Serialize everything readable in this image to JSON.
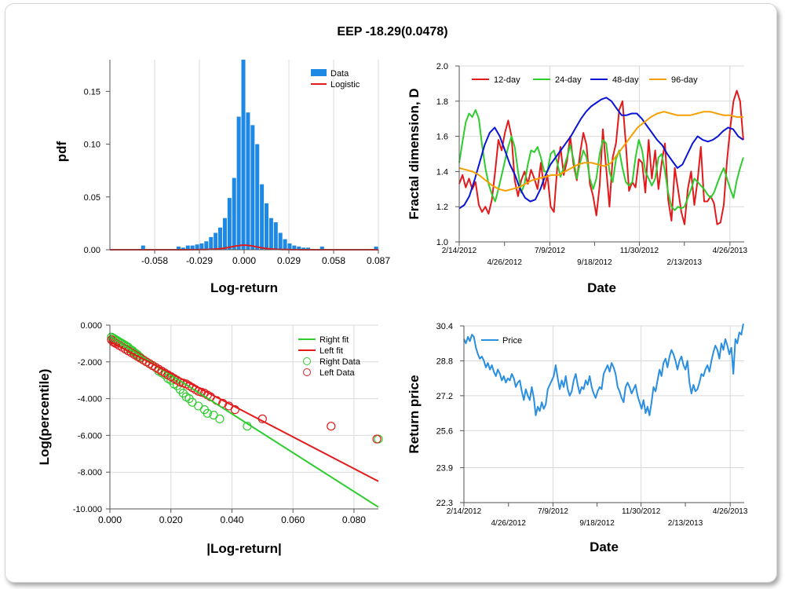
{
  "title": "EEP -18.29(0.0478)",
  "colors": {
    "bars": "#1e88e5",
    "logistic": "#e31a1c",
    "red": "#e31a1c",
    "green": "#2ecc2e",
    "blue": "#0a14d6",
    "orange": "#f5a000",
    "price": "#2a8fe0",
    "grid": "#d9d9d9"
  },
  "chart_data": [
    {
      "id": "pdf",
      "type": "bar",
      "xlabel": "Log-return",
      "ylabel": "pdf",
      "xlim": [
        -0.087,
        0.087
      ],
      "ylim": [
        0,
        0.18
      ],
      "x_tick_values": [
        -0.058,
        -0.029,
        0.0,
        0.029,
        0.058,
        0.087
      ],
      "x_tick_labels": [
        "-0.058",
        "-0.029",
        "0.000",
        "0.029",
        "0.058",
        "0.087"
      ],
      "y_tick_values": [
        0,
        0.05,
        0.1,
        0.15
      ],
      "y_tick_labels": [
        "0.00",
        "0.05",
        "0.10",
        "0.15"
      ],
      "legend": [
        "Data",
        "Logistic"
      ],
      "bars": [
        {
          "x": -0.0655,
          "h": 0.004
        },
        {
          "x": -0.0425,
          "h": 0.003
        },
        {
          "x": -0.0395,
          "h": 0.002
        },
        {
          "x": -0.0365,
          "h": 0.004
        },
        {
          "x": -0.0335,
          "h": 0.004
        },
        {
          "x": -0.0305,
          "h": 0.005
        },
        {
          "x": -0.0275,
          "h": 0.006
        },
        {
          "x": -0.0245,
          "h": 0.008
        },
        {
          "x": -0.0215,
          "h": 0.012
        },
        {
          "x": -0.0185,
          "h": 0.016
        },
        {
          "x": -0.0155,
          "h": 0.021
        },
        {
          "x": -0.0125,
          "h": 0.03
        },
        {
          "x": -0.0095,
          "h": 0.049
        },
        {
          "x": -0.0065,
          "h": 0.068
        },
        {
          "x": -0.0035,
          "h": 0.126
        },
        {
          "x": -0.0005,
          "h": 0.18
        },
        {
          "x": 0.0025,
          "h": 0.13
        },
        {
          "x": 0.0055,
          "h": 0.118
        },
        {
          "x": 0.0085,
          "h": 0.1
        },
        {
          "x": 0.0115,
          "h": 0.062
        },
        {
          "x": 0.0145,
          "h": 0.044
        },
        {
          "x": 0.0175,
          "h": 0.03
        },
        {
          "x": 0.0205,
          "h": 0.026
        },
        {
          "x": 0.0235,
          "h": 0.016
        },
        {
          "x": 0.0265,
          "h": 0.01
        },
        {
          "x": 0.0295,
          "h": 0.006
        },
        {
          "x": 0.0325,
          "h": 0.004
        },
        {
          "x": 0.0355,
          "h": 0.003
        },
        {
          "x": 0.0385,
          "h": 0.002
        },
        {
          "x": 0.0415,
          "h": 0.002
        },
        {
          "x": 0.0505,
          "h": 0.003
        },
        {
          "x": 0.0855,
          "h": 0.003
        }
      ],
      "logistic": {
        "mu": 0.0,
        "s": 0.0058
      }
    },
    {
      "id": "fractal",
      "type": "line",
      "xlabel": "Date",
      "ylabel": "Fractal dimension, D",
      "xlim": [
        0,
        1.0
      ],
      "ylim": [
        1.0,
        2.0
      ],
      "y_tick_values": [
        1.0,
        1.2,
        1.4,
        1.6,
        1.8,
        2.0
      ],
      "y_tick_labels": [
        "1.0",
        "1.2",
        "1.4",
        "1.6",
        "1.8",
        "2.0"
      ],
      "date_ticks_top": [
        "2/14/2012",
        "7/9/2012",
        "11/30/2012",
        "4/26/2013"
      ],
      "date_ticks_bottom": [
        "4/26/2012",
        "9/18/2012",
        "2/13/2013"
      ],
      "date_tick_positions_top": [
        0.0,
        0.318,
        0.632,
        0.95
      ],
      "date_tick_positions_bottom": [
        0.159,
        0.475,
        0.79
      ],
      "legend": [
        "12-day",
        "24-day",
        "48-day",
        "96-day"
      ],
      "series": [
        {
          "name": "12-day",
          "color_key": "red",
          "values": [
            1.33,
            1.38,
            1.31,
            1.36,
            1.3,
            1.34,
            1.21,
            1.17,
            1.2,
            1.16,
            1.24,
            1.4,
            1.58,
            1.52,
            1.62,
            1.69,
            1.6,
            1.35,
            1.26,
            1.35,
            1.4,
            1.33,
            1.41,
            1.36,
            1.3,
            1.45,
            1.3,
            1.38,
            1.2,
            1.17,
            1.42,
            1.54,
            1.38,
            1.46,
            1.6,
            1.44,
            1.35,
            1.5,
            1.62,
            1.55,
            1.33,
            1.26,
            1.15,
            1.32,
            1.64,
            1.42,
            1.2,
            1.48,
            1.56,
            1.75,
            1.8,
            1.56,
            1.29,
            1.34,
            1.31,
            1.47,
            1.45,
            1.28,
            1.58,
            1.36,
            1.52,
            1.3,
            1.45,
            1.56,
            1.24,
            1.12,
            1.42,
            1.3,
            1.17,
            1.1,
            1.3,
            1.4,
            1.21,
            1.35,
            1.54,
            1.23,
            1.23,
            1.26,
            1.22,
            1.1,
            1.11,
            1.21,
            1.46,
            1.65,
            1.8,
            1.86,
            1.8,
            1.58
          ]
        },
        {
          "name": "24-day",
          "color_key": "green",
          "values": [
            1.45,
            1.57,
            1.68,
            1.73,
            1.71,
            1.75,
            1.7,
            1.55,
            1.42,
            1.33,
            1.27,
            1.23,
            1.3,
            1.38,
            1.46,
            1.54,
            1.6,
            1.54,
            1.4,
            1.28,
            1.33,
            1.44,
            1.52,
            1.51,
            1.54,
            1.48,
            1.4,
            1.4,
            1.5,
            1.52,
            1.45,
            1.37,
            1.42,
            1.48,
            1.55,
            1.47,
            1.36,
            1.45,
            1.52,
            1.48,
            1.36,
            1.3,
            1.36,
            1.5,
            1.58,
            1.56,
            1.4,
            1.34,
            1.47,
            1.52,
            1.42,
            1.34,
            1.32,
            1.34,
            1.48,
            1.58,
            1.52,
            1.4,
            1.36,
            1.32,
            1.36,
            1.48,
            1.5,
            1.4,
            1.28,
            1.2,
            1.18,
            1.2,
            1.19,
            1.2,
            1.25,
            1.3,
            1.36,
            1.34,
            1.32,
            1.3,
            1.27,
            1.25,
            1.28,
            1.33,
            1.38,
            1.42,
            1.36,
            1.3,
            1.25,
            1.35,
            1.42,
            1.48
          ]
        },
        {
          "name": "48-day",
          "color_key": "blue",
          "values": [
            1.19,
            1.21,
            1.26,
            1.35,
            1.45,
            1.55,
            1.62,
            1.65,
            1.6,
            1.52,
            1.44,
            1.38,
            1.3,
            1.25,
            1.23,
            1.24,
            1.3,
            1.38,
            1.44,
            1.48,
            1.52,
            1.56,
            1.6,
            1.65,
            1.7,
            1.74,
            1.77,
            1.79,
            1.81,
            1.82,
            1.8,
            1.76,
            1.72,
            1.72,
            1.73,
            1.73,
            1.7,
            1.66,
            1.62,
            1.58,
            1.55,
            1.5,
            1.46,
            1.42,
            1.44,
            1.5,
            1.56,
            1.6,
            1.58,
            1.57,
            1.58,
            1.6,
            1.63,
            1.65,
            1.64,
            1.6,
            1.58
          ]
        },
        {
          "name": "96-day",
          "color_key": "orange",
          "values": [
            1.42,
            1.41,
            1.4,
            1.38,
            1.35,
            1.32,
            1.3,
            1.29,
            1.3,
            1.31,
            1.33,
            1.35,
            1.36,
            1.37,
            1.38,
            1.38,
            1.4,
            1.42,
            1.44,
            1.45,
            1.45,
            1.44,
            1.43,
            1.45,
            1.5,
            1.55,
            1.6,
            1.65,
            1.68,
            1.71,
            1.73,
            1.74,
            1.73,
            1.72,
            1.72,
            1.72,
            1.73,
            1.74,
            1.74,
            1.73,
            1.72,
            1.72,
            1.71,
            1.71
          ]
        }
      ]
    },
    {
      "id": "tail",
      "type": "scatter",
      "xlabel": "|Log-return|",
      "ylabel": "Log(percentile)",
      "xlim": [
        0,
        0.088
      ],
      "ylim": [
        -10.0,
        0.0
      ],
      "x_tick_values": [
        0.0,
        0.02,
        0.04,
        0.06,
        0.08
      ],
      "x_tick_labels": [
        "0.000",
        "0.020",
        "0.040",
        "0.060",
        "0.080"
      ],
      "y_tick_values": [
        0,
        -2,
        -4,
        -6,
        -8,
        -10
      ],
      "y_tick_labels": [
        "0.000",
        "-2.000",
        "-4.000",
        "-6.000",
        "-8.000",
        "-10.000"
      ],
      "legend": [
        "Right fit",
        "Left fit",
        "Right Data",
        "Left Data"
      ],
      "right_fit": {
        "x": [
          0.0,
          0.088
        ],
        "y": [
          -0.6,
          -9.9
        ]
      },
      "left_fit": {
        "x": [
          0.0,
          0.088
        ],
        "y": [
          -0.9,
          -8.5
        ]
      },
      "right_data": {
        "x": [
          0.0005,
          0.001,
          0.0015,
          0.002,
          0.0025,
          0.003,
          0.0035,
          0.004,
          0.0045,
          0.005,
          0.0055,
          0.006,
          0.0065,
          0.007,
          0.0075,
          0.008,
          0.0085,
          0.009,
          0.0095,
          0.01,
          0.011,
          0.012,
          0.013,
          0.014,
          0.015,
          0.016,
          0.017,
          0.018,
          0.019,
          0.02,
          0.021,
          0.022,
          0.023,
          0.024,
          0.025,
          0.026,
          0.027,
          0.029,
          0.031,
          0.032,
          0.034,
          0.036,
          0.045,
          0.088
        ],
        "y": [
          -0.65,
          -0.7,
          -0.75,
          -0.8,
          -0.85,
          -0.9,
          -0.95,
          -1.0,
          -1.05,
          -1.1,
          -1.15,
          -1.2,
          -1.3,
          -1.35,
          -1.4,
          -1.5,
          -1.55,
          -1.6,
          -1.7,
          -1.75,
          -1.9,
          -2.0,
          -2.1,
          -2.2,
          -2.3,
          -2.5,
          -2.6,
          -2.7,
          -2.9,
          -3.0,
          -3.2,
          -3.3,
          -3.5,
          -3.7,
          -3.9,
          -4.0,
          -4.2,
          -4.4,
          -4.6,
          -4.8,
          -4.9,
          -5.1,
          -5.5,
          -6.2
        ]
      },
      "left_data": {
        "x": [
          0.0005,
          0.001,
          0.0015,
          0.002,
          0.003,
          0.004,
          0.005,
          0.006,
          0.007,
          0.008,
          0.009,
          0.01,
          0.011,
          0.012,
          0.013,
          0.014,
          0.015,
          0.016,
          0.017,
          0.018,
          0.019,
          0.02,
          0.021,
          0.022,
          0.023,
          0.024,
          0.025,
          0.026,
          0.027,
          0.028,
          0.029,
          0.03,
          0.031,
          0.032,
          0.033,
          0.035,
          0.037,
          0.039,
          0.041,
          0.05,
          0.0725,
          0.0875
        ],
        "y": [
          -0.8,
          -0.9,
          -0.95,
          -1.0,
          -1.1,
          -1.2,
          -1.3,
          -1.4,
          -1.5,
          -1.6,
          -1.7,
          -1.8,
          -1.9,
          -2.0,
          -2.1,
          -2.2,
          -2.3,
          -2.4,
          -2.5,
          -2.6,
          -2.7,
          -2.8,
          -2.9,
          -3.0,
          -3.1,
          -3.15,
          -3.2,
          -3.3,
          -3.4,
          -3.5,
          -3.6,
          -3.65,
          -3.7,
          -3.8,
          -3.9,
          -4.1,
          -4.25,
          -4.4,
          -4.6,
          -5.1,
          -5.5,
          -6.2
        ]
      }
    },
    {
      "id": "price",
      "type": "line",
      "xlabel": "Date",
      "ylabel": "Return price",
      "xlim": [
        0,
        1.0
      ],
      "ylim": [
        22.3,
        30.4
      ],
      "y_tick_values": [
        22.3,
        23.9,
        25.6,
        27.2,
        28.8,
        30.4
      ],
      "y_tick_labels": [
        "22.3",
        "23.9",
        "25.6",
        "27.2",
        "28.8",
        "30.4"
      ],
      "date_ticks_top": [
        "2/14/2012",
        "7/9/2012",
        "11/30/2012",
        "4/26/2013"
      ],
      "date_ticks_bottom": [
        "4/26/2012",
        "9/18/2012",
        "2/13/2013"
      ],
      "date_tick_positions_top": [
        0.0,
        0.318,
        0.632,
        0.95
      ],
      "date_tick_positions_bottom": [
        0.159,
        0.475,
        0.79
      ],
      "legend": [
        "Price"
      ],
      "series": [
        {
          "name": "Price",
          "color_key": "price",
          "values": [
            29.8,
            29.6,
            29.9,
            29.7,
            30.0,
            29.9,
            29.4,
            29.1,
            28.9,
            29.0,
            28.8,
            28.5,
            28.7,
            28.4,
            28.6,
            28.3,
            28.1,
            28.4,
            28.2,
            27.9,
            28.1,
            27.8,
            28.0,
            27.9,
            28.2,
            28.0,
            27.6,
            27.8,
            27.9,
            27.4,
            27.0,
            27.5,
            27.2,
            27.0,
            27.6,
            27.1,
            26.3,
            26.7,
            26.5,
            26.9,
            26.6,
            26.8,
            27.5,
            27.7,
            27.9,
            28.1,
            28.6,
            28.0,
            27.5,
            27.9,
            27.6,
            28.1,
            27.5,
            27.2,
            27.4,
            27.9,
            28.2,
            27.7,
            27.3,
            27.6,
            27.5,
            27.9,
            27.7,
            28.1,
            27.6,
            27.3,
            27.1,
            27.4,
            27.6,
            27.5,
            28.2,
            28.4,
            28.6,
            28.3,
            28.7,
            28.5,
            28.2,
            27.6,
            27.4,
            27.1,
            26.9,
            27.6,
            27.8,
            27.6,
            27.3,
            27.5,
            27.7,
            27.2,
            26.9,
            26.6,
            27.0,
            26.4,
            26.7,
            26.3,
            26.9,
            27.6,
            27.4,
            27.9,
            28.4,
            28.1,
            28.7,
            28.9,
            28.5,
            29.0,
            29.3,
            29.1,
            28.8,
            28.4,
            28.8,
            29.0,
            28.6,
            28.4,
            28.8,
            27.8,
            27.3,
            27.7,
            27.4,
            27.5,
            27.8,
            28.2,
            28.1,
            28.4,
            28.6,
            28.3,
            28.8,
            29.2,
            29.5,
            29.3,
            28.9,
            29.6,
            29.3,
            29.8,
            29.5,
            29.1,
            29.4,
            28.2,
            29.8,
            29.6,
            30.1,
            30.0,
            30.5
          ]
        }
      ]
    }
  ]
}
